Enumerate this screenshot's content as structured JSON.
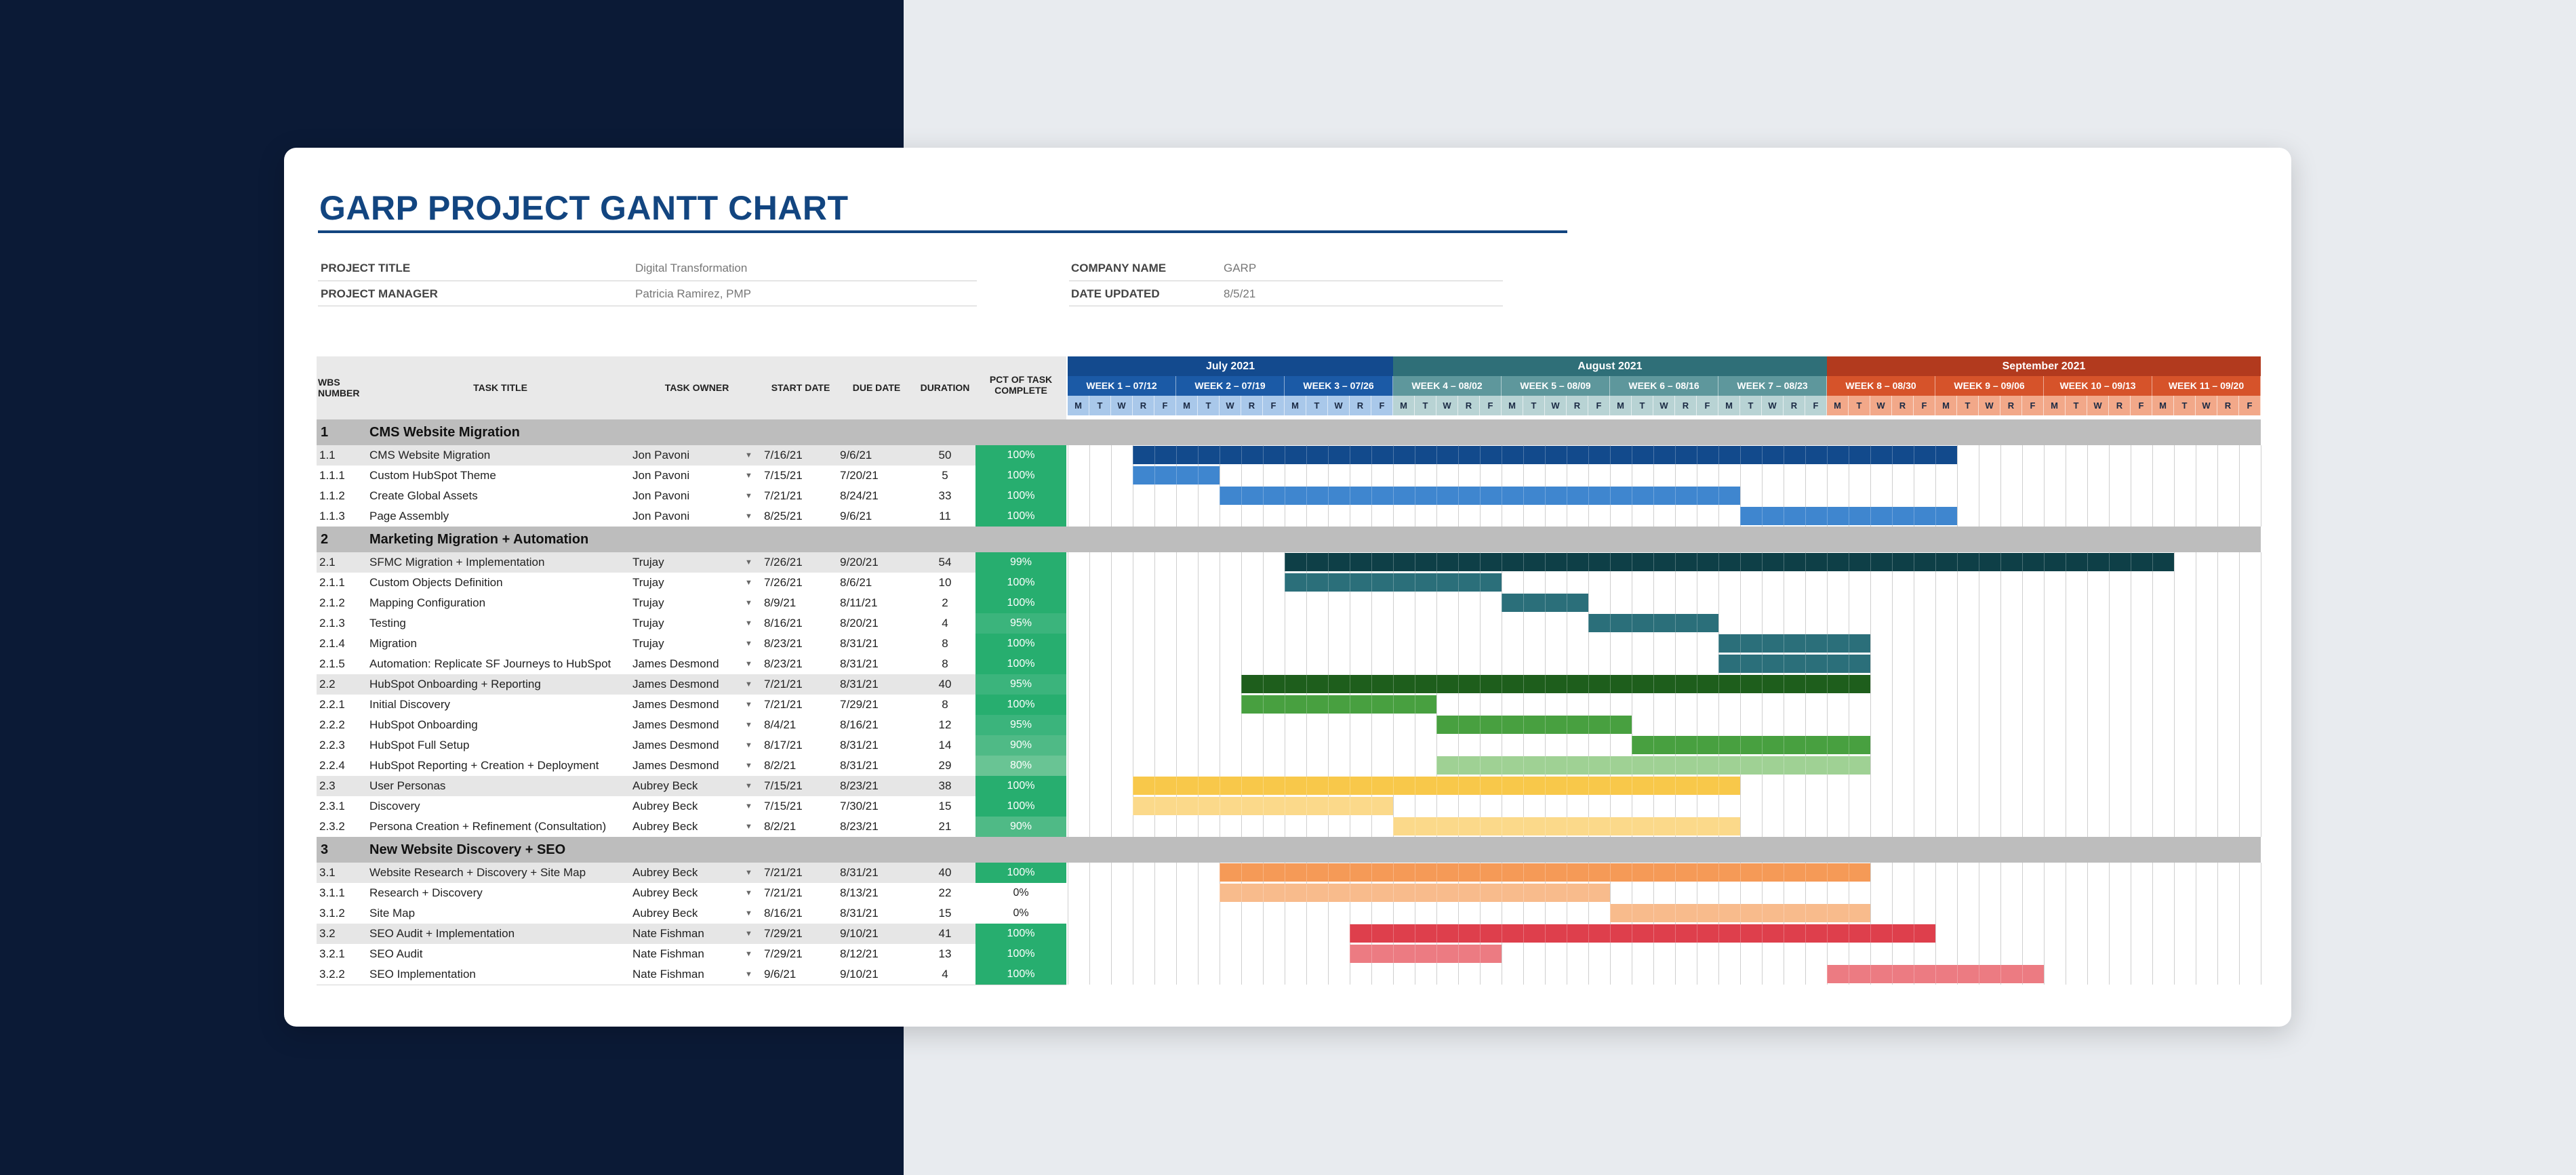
{
  "title": "GARP PROJECT GANTT CHART",
  "meta": {
    "project_title_label": "PROJECT TITLE",
    "project_title_value": "Digital Transformation",
    "project_manager_label": "PROJECT MANAGER",
    "project_manager_value": "Patricia Ramirez, PMP",
    "company_name_label": "COMPANY NAME",
    "company_name_value": "GARP",
    "date_updated_label": "DATE UPDATED",
    "date_updated_value": "8/5/21"
  },
  "columns": {
    "wbs": "WBS NUMBER",
    "task": "TASK TITLE",
    "owner": "TASK OWNER",
    "start": "START DATE",
    "due": "DUE DATE",
    "duration": "DURATION",
    "pct": "PCT OF TASK COMPLETE"
  },
  "months": [
    {
      "label": "July 2021",
      "color": "#134a8e",
      "days": 15
    },
    {
      "label": "August 2021",
      "color": "#2f6f78",
      "days": 20
    },
    {
      "label": "September 2021",
      "color": "#b23a1e",
      "days": 20
    }
  ],
  "weeks": [
    {
      "label": "WEEK 1 – 07/12",
      "color": "#1b5aa6"
    },
    {
      "label": "WEEK 2 – 07/19",
      "color": "#1b5aa6"
    },
    {
      "label": "WEEK 3 – 07/26",
      "color": "#1b5aa6"
    },
    {
      "label": "WEEK 4 – 08/02",
      "color": "#5e979c"
    },
    {
      "label": "WEEK 5 – 08/09",
      "color": "#5e979c"
    },
    {
      "label": "WEEK 6 – 08/16",
      "color": "#5e979c"
    },
    {
      "label": "WEEK 7 – 08/23",
      "color": "#5e979c"
    },
    {
      "label": "WEEK 8 – 08/30",
      "color": "#d6532a"
    },
    {
      "label": "WEEK 9 – 09/06",
      "color": "#d6532a"
    },
    {
      "label": "WEEK 10 – 09/13",
      "color": "#d6532a"
    },
    {
      "label": "WEEK 11 – 09/20",
      "color": "#d6532a"
    }
  ],
  "day_letters": [
    "M",
    "T",
    "W",
    "R",
    "F"
  ],
  "day_colors": [
    "#a9c8ea",
    "#a9c8ea",
    "#a9c8ea",
    "#b8d3d4",
    "#b8d3d4",
    "#b8d3d4",
    "#b8d3d4",
    "#f2a889",
    "#f2a889",
    "#f2a889",
    "#f2a889"
  ],
  "sections": [
    {
      "num": "1",
      "title": "CMS Website Migration",
      "rows": [
        {
          "wbs": "1.1",
          "task": "CMS Website Migration",
          "owner": "Jon Pavoni",
          "start": "7/16/21",
          "due": "9/6/21",
          "duration": "50",
          "pct": "100%",
          "parent": true,
          "bar_start": 3,
          "bar_len": 38,
          "color": "#124a8c",
          "pct_color": "#27ae6f"
        },
        {
          "wbs": "1.1.1",
          "task": "Custom HubSpot Theme",
          "owner": "Jon Pavoni",
          "start": "7/15/21",
          "due": "7/20/21",
          "duration": "5",
          "pct": "100%",
          "parent": false,
          "bar_start": 3,
          "bar_len": 4,
          "color": "#3f86cf",
          "pct_color": "#27ae6f"
        },
        {
          "wbs": "1.1.2",
          "task": "Create Global Assets",
          "owner": "Jon Pavoni",
          "start": "7/21/21",
          "due": "8/24/21",
          "duration": "33",
          "pct": "100%",
          "parent": false,
          "bar_start": 7,
          "bar_len": 24,
          "color": "#3f86cf",
          "pct_color": "#27ae6f"
        },
        {
          "wbs": "1.1.3",
          "task": "Page Assembly",
          "owner": "Jon Pavoni",
          "start": "8/25/21",
          "due": "9/6/21",
          "duration": "11",
          "pct": "100%",
          "parent": false,
          "bar_start": 31,
          "bar_len": 10,
          "color": "#3f86cf",
          "pct_color": "#27ae6f"
        }
      ]
    },
    {
      "num": "2",
      "title": "Marketing Migration + Automation",
      "rows": [
        {
          "wbs": "2.1",
          "task": "SFMC Migration + Implementation",
          "owner": "Trujay",
          "start": "7/26/21",
          "due": "9/20/21",
          "duration": "54",
          "pct": "99%",
          "parent": true,
          "bar_start": 10,
          "bar_len": 41,
          "color": "#0e3f47",
          "pct_color": "#27ae6f"
        },
        {
          "wbs": "2.1.1",
          "task": "Custom Objects Definition",
          "owner": "Trujay",
          "start": "7/26/21",
          "due": "8/6/21",
          "duration": "10",
          "pct": "100%",
          "parent": false,
          "bar_start": 10,
          "bar_len": 10,
          "color": "#2b6f7a",
          "pct_color": "#27ae6f"
        },
        {
          "wbs": "2.1.2",
          "task": "Mapping Configuration",
          "owner": "Trujay",
          "start": "8/9/21",
          "due": "8/11/21",
          "duration": "2",
          "pct": "100%",
          "parent": false,
          "bar_start": 20,
          "bar_len": 4,
          "color": "#2b6f7a",
          "pct_color": "#27ae6f"
        },
        {
          "wbs": "2.1.3",
          "task": "Testing",
          "owner": "Trujay",
          "start": "8/16/21",
          "due": "8/20/21",
          "duration": "4",
          "pct": "95%",
          "parent": false,
          "bar_start": 24,
          "bar_len": 6,
          "color": "#2b6f7a",
          "pct_color": "#3bb47c"
        },
        {
          "wbs": "2.1.4",
          "task": "Migration",
          "owner": "Trujay",
          "start": "8/23/21",
          "due": "8/31/21",
          "duration": "8",
          "pct": "100%",
          "parent": false,
          "bar_start": 30,
          "bar_len": 7,
          "color": "#2b6f7a",
          "pct_color": "#27ae6f"
        },
        {
          "wbs": "2.1.5",
          "task": "Automation: Replicate SF Journeys to HubSpot",
          "owner": "James Desmond",
          "start": "8/23/21",
          "due": "8/31/21",
          "duration": "8",
          "pct": "100%",
          "parent": false,
          "bar_start": 30,
          "bar_len": 7,
          "color": "#2b6f7a",
          "pct_color": "#27ae6f"
        },
        {
          "wbs": "2.2",
          "task": "HubSpot Onboarding + Reporting",
          "owner": "James Desmond",
          "start": "7/21/21",
          "due": "8/31/21",
          "duration": "40",
          "pct": "95%",
          "parent": true,
          "bar_start": 8,
          "bar_len": 29,
          "color": "#1e5e1c",
          "pct_color": "#3bb47c"
        },
        {
          "wbs": "2.2.1",
          "task": "Initial Discovery",
          "owner": "James Desmond",
          "start": "7/21/21",
          "due": "7/29/21",
          "duration": "8",
          "pct": "100%",
          "parent": false,
          "bar_start": 8,
          "bar_len": 9,
          "color": "#48a040",
          "pct_color": "#27ae6f"
        },
        {
          "wbs": "2.2.2",
          "task": "HubSpot Onboarding",
          "owner": "James Desmond",
          "start": "8/4/21",
          "due": "8/16/21",
          "duration": "12",
          "pct": "95%",
          "parent": false,
          "bar_start": 17,
          "bar_len": 9,
          "color": "#48a040",
          "pct_color": "#3bb47c"
        },
        {
          "wbs": "2.2.3",
          "task": "HubSpot Full Setup",
          "owner": "James Desmond",
          "start": "8/17/21",
          "due": "8/31/21",
          "duration": "14",
          "pct": "90%",
          "parent": false,
          "bar_start": 26,
          "bar_len": 11,
          "color": "#48a040",
          "pct_color": "#4fba86"
        },
        {
          "wbs": "2.2.4",
          "task": "HubSpot Reporting + Creation + Deployment",
          "owner": "James Desmond",
          "start": "8/2/21",
          "due": "8/31/21",
          "duration": "29",
          "pct": "80%",
          "parent": false,
          "bar_start": 17,
          "bar_len": 20,
          "color": "#9fd194",
          "pct_color": "#69c494"
        },
        {
          "wbs": "2.3",
          "task": "User Personas",
          "owner": "Aubrey Beck",
          "start": "7/15/21",
          "due": "8/23/21",
          "duration": "38",
          "pct": "100%",
          "parent": true,
          "bar_start": 3,
          "bar_len": 28,
          "color": "#f8c84a",
          "pct_color": "#27ae6f"
        },
        {
          "wbs": "2.3.1",
          "task": "Discovery",
          "owner": "Aubrey Beck",
          "start": "7/15/21",
          "due": "7/30/21",
          "duration": "15",
          "pct": "100%",
          "parent": false,
          "bar_start": 3,
          "bar_len": 12,
          "color": "#fbd98a",
          "pct_color": "#27ae6f"
        },
        {
          "wbs": "2.3.2",
          "task": "Persona Creation + Refinement  (Consultation)",
          "owner": "Aubrey Beck",
          "start": "8/2/21",
          "due": "8/23/21",
          "duration": "21",
          "pct": "90%",
          "parent": false,
          "bar_start": 15,
          "bar_len": 16,
          "color": "#fbd98a",
          "pct_color": "#4fba86"
        }
      ]
    },
    {
      "num": "3",
      "title": "New Website Discovery + SEO",
      "rows": [
        {
          "wbs": "3.1",
          "task": "Website Research + Discovery + Site Map",
          "owner": "Aubrey Beck",
          "start": "7/21/21",
          "due": "8/31/21",
          "duration": "40",
          "pct": "100%",
          "parent": true,
          "bar_start": 7,
          "bar_len": 30,
          "color": "#f59a57",
          "pct_color": "#27ae6f"
        },
        {
          "wbs": "3.1.1",
          "task": "Research + Discovery",
          "owner": "Aubrey Beck",
          "start": "7/21/21",
          "due": "8/13/21",
          "duration": "22",
          "pct": "0%",
          "parent": false,
          "bar_start": 7,
          "bar_len": 18,
          "color": "#f8bb8c",
          "pct_color": ""
        },
        {
          "wbs": "3.1.2",
          "task": "Site Map",
          "owner": "Aubrey Beck",
          "start": "8/16/21",
          "due": "8/31/21",
          "duration": "15",
          "pct": "0%",
          "parent": false,
          "bar_start": 25,
          "bar_len": 12,
          "color": "#f8bb8c",
          "pct_color": ""
        },
        {
          "wbs": "3.2",
          "task": "SEO Audit + Implementation",
          "owner": "Nate Fishman",
          "start": "7/29/21",
          "due": "9/10/21",
          "duration": "41",
          "pct": "100%",
          "parent": true,
          "bar_start": 13,
          "bar_len": 27,
          "color": "#de3f4c",
          "pct_color": "#27ae6f"
        },
        {
          "wbs": "3.2.1",
          "task": "SEO Audit",
          "owner": "Nate Fishman",
          "start": "7/29/21",
          "due": "8/12/21",
          "duration": "13",
          "pct": "100%",
          "parent": false,
          "bar_start": 13,
          "bar_len": 7,
          "color": "#ec7b82",
          "pct_color": "#27ae6f"
        },
        {
          "wbs": "3.2.2",
          "task": "SEO Implementation",
          "owner": "Nate Fishman",
          "start": "9/6/21",
          "due": "9/10/21",
          "duration": "4",
          "pct": "100%",
          "parent": false,
          "bar_start": 35,
          "bar_len": 10,
          "color": "#ec7b82",
          "pct_color": "#27ae6f"
        }
      ]
    }
  ]
}
